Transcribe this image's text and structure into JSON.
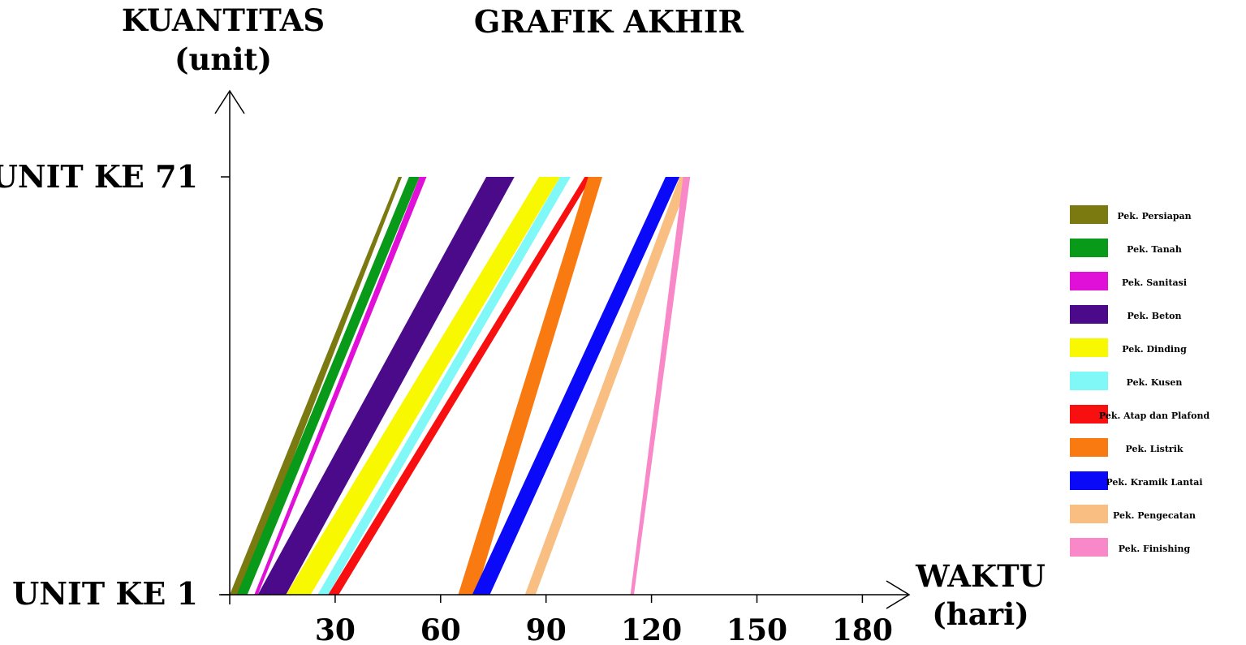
{
  "chart_data": {
    "type": "line",
    "title": "GRAFIK AKHIR",
    "ylabel": [
      "KUANTITAS",
      "(unit)"
    ],
    "xlabel": [
      "WAKTU",
      "(hari)"
    ],
    "xticks": [
      30,
      60,
      90,
      120,
      150,
      180
    ],
    "xlim": [
      0,
      190
    ],
    "ycategories": [
      "UNIT KE 1",
      "UNIT KE 71"
    ],
    "ylim": [
      1,
      71
    ],
    "grid": false,
    "legend_position": "right",
    "series": [
      {
        "name": "Pek. Persiapan",
        "color": "#7a7a10",
        "start": [
          0,
          3
        ],
        "finish": [
          48,
          49
        ]
      },
      {
        "name": "Pek. Tanah",
        "color": "#0a9a1a",
        "start": [
          2,
          5
        ],
        "finish": [
          51,
          54
        ]
      },
      {
        "name": "Pek. Sanitasi",
        "color": "#e010d8",
        "start": [
          7,
          8
        ],
        "finish": [
          54,
          56
        ]
      },
      {
        "name": "Pek. Beton",
        "color": "#4a0a8a",
        "start": [
          8,
          16
        ],
        "finish": [
          73,
          81
        ]
      },
      {
        "name": "Pek. Dinding",
        "color": "#f8f800",
        "start": [
          16,
          23
        ],
        "finish": [
          88,
          94
        ]
      },
      {
        "name": "Pek. Kusen",
        "color": "#80f8f8",
        "start": [
          25,
          28
        ],
        "finish": [
          94,
          97
        ]
      },
      {
        "name": "Pek. Atap dan Plafond",
        "color": "#f81010",
        "start": [
          28,
          31
        ],
        "finish": [
          101,
          103
        ]
      },
      {
        "name": "Pek. Listrik",
        "color": "#f87a10",
        "start": [
          65,
          70
        ],
        "finish": [
          102,
          106
        ]
      },
      {
        "name": "Pek. Kramik Lantai",
        "color": "#0a0af8",
        "start": [
          69,
          74
        ],
        "finish": [
          124,
          128
        ]
      },
      {
        "name": "Pek. Pengecatan",
        "color": "#f8be82",
        "start": [
          84,
          87
        ],
        "finish": [
          128,
          131
        ]
      },
      {
        "name": "Pek. Finishing",
        "color": "#f888c8",
        "start": [
          114,
          115
        ],
        "finish": [
          129,
          131
        ]
      }
    ]
  }
}
